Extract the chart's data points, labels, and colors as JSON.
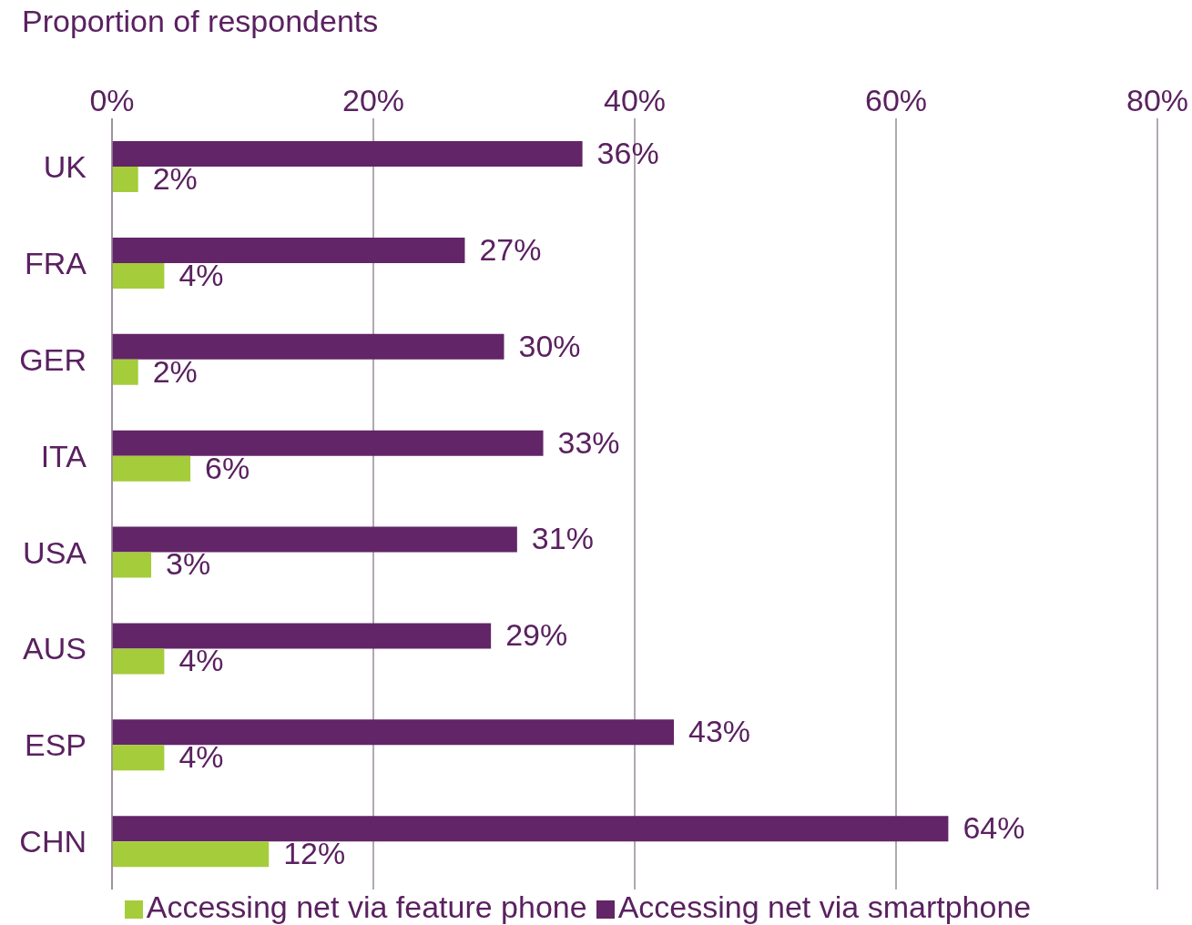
{
  "chart_data": {
    "type": "bar",
    "orientation": "horizontal",
    "title": "Proportion of respondents",
    "categories": [
      "UK",
      "FRA",
      "GER",
      "ITA",
      "USA",
      "AUS",
      "ESP",
      "CHN"
    ],
    "series": [
      {
        "name": "Accessing net via smartphone",
        "color": "#622567",
        "values": [
          36,
          27,
          30,
          33,
          31,
          29,
          43,
          64
        ],
        "value_labels": [
          "36%",
          "27%",
          "30%",
          "33%",
          "31%",
          "29%",
          "43%",
          "64%"
        ]
      },
      {
        "name": "Accessing net via feature phone",
        "color": "#a5cc3a",
        "values": [
          2,
          4,
          2,
          6,
          3,
          4,
          4,
          12
        ],
        "value_labels": [
          "2%",
          "4%",
          "2%",
          "6%",
          "3%",
          "4%",
          "4%",
          "12%"
        ]
      }
    ],
    "xlim": [
      0,
      80
    ],
    "xticks": [
      {
        "value": 0,
        "label": "0%"
      },
      {
        "value": 20,
        "label": "20%"
      },
      {
        "value": 40,
        "label": "40%"
      },
      {
        "value": 60,
        "label": "60%"
      },
      {
        "value": 80,
        "label": "80%"
      }
    ],
    "grid": "x",
    "legend": "bottom"
  }
}
